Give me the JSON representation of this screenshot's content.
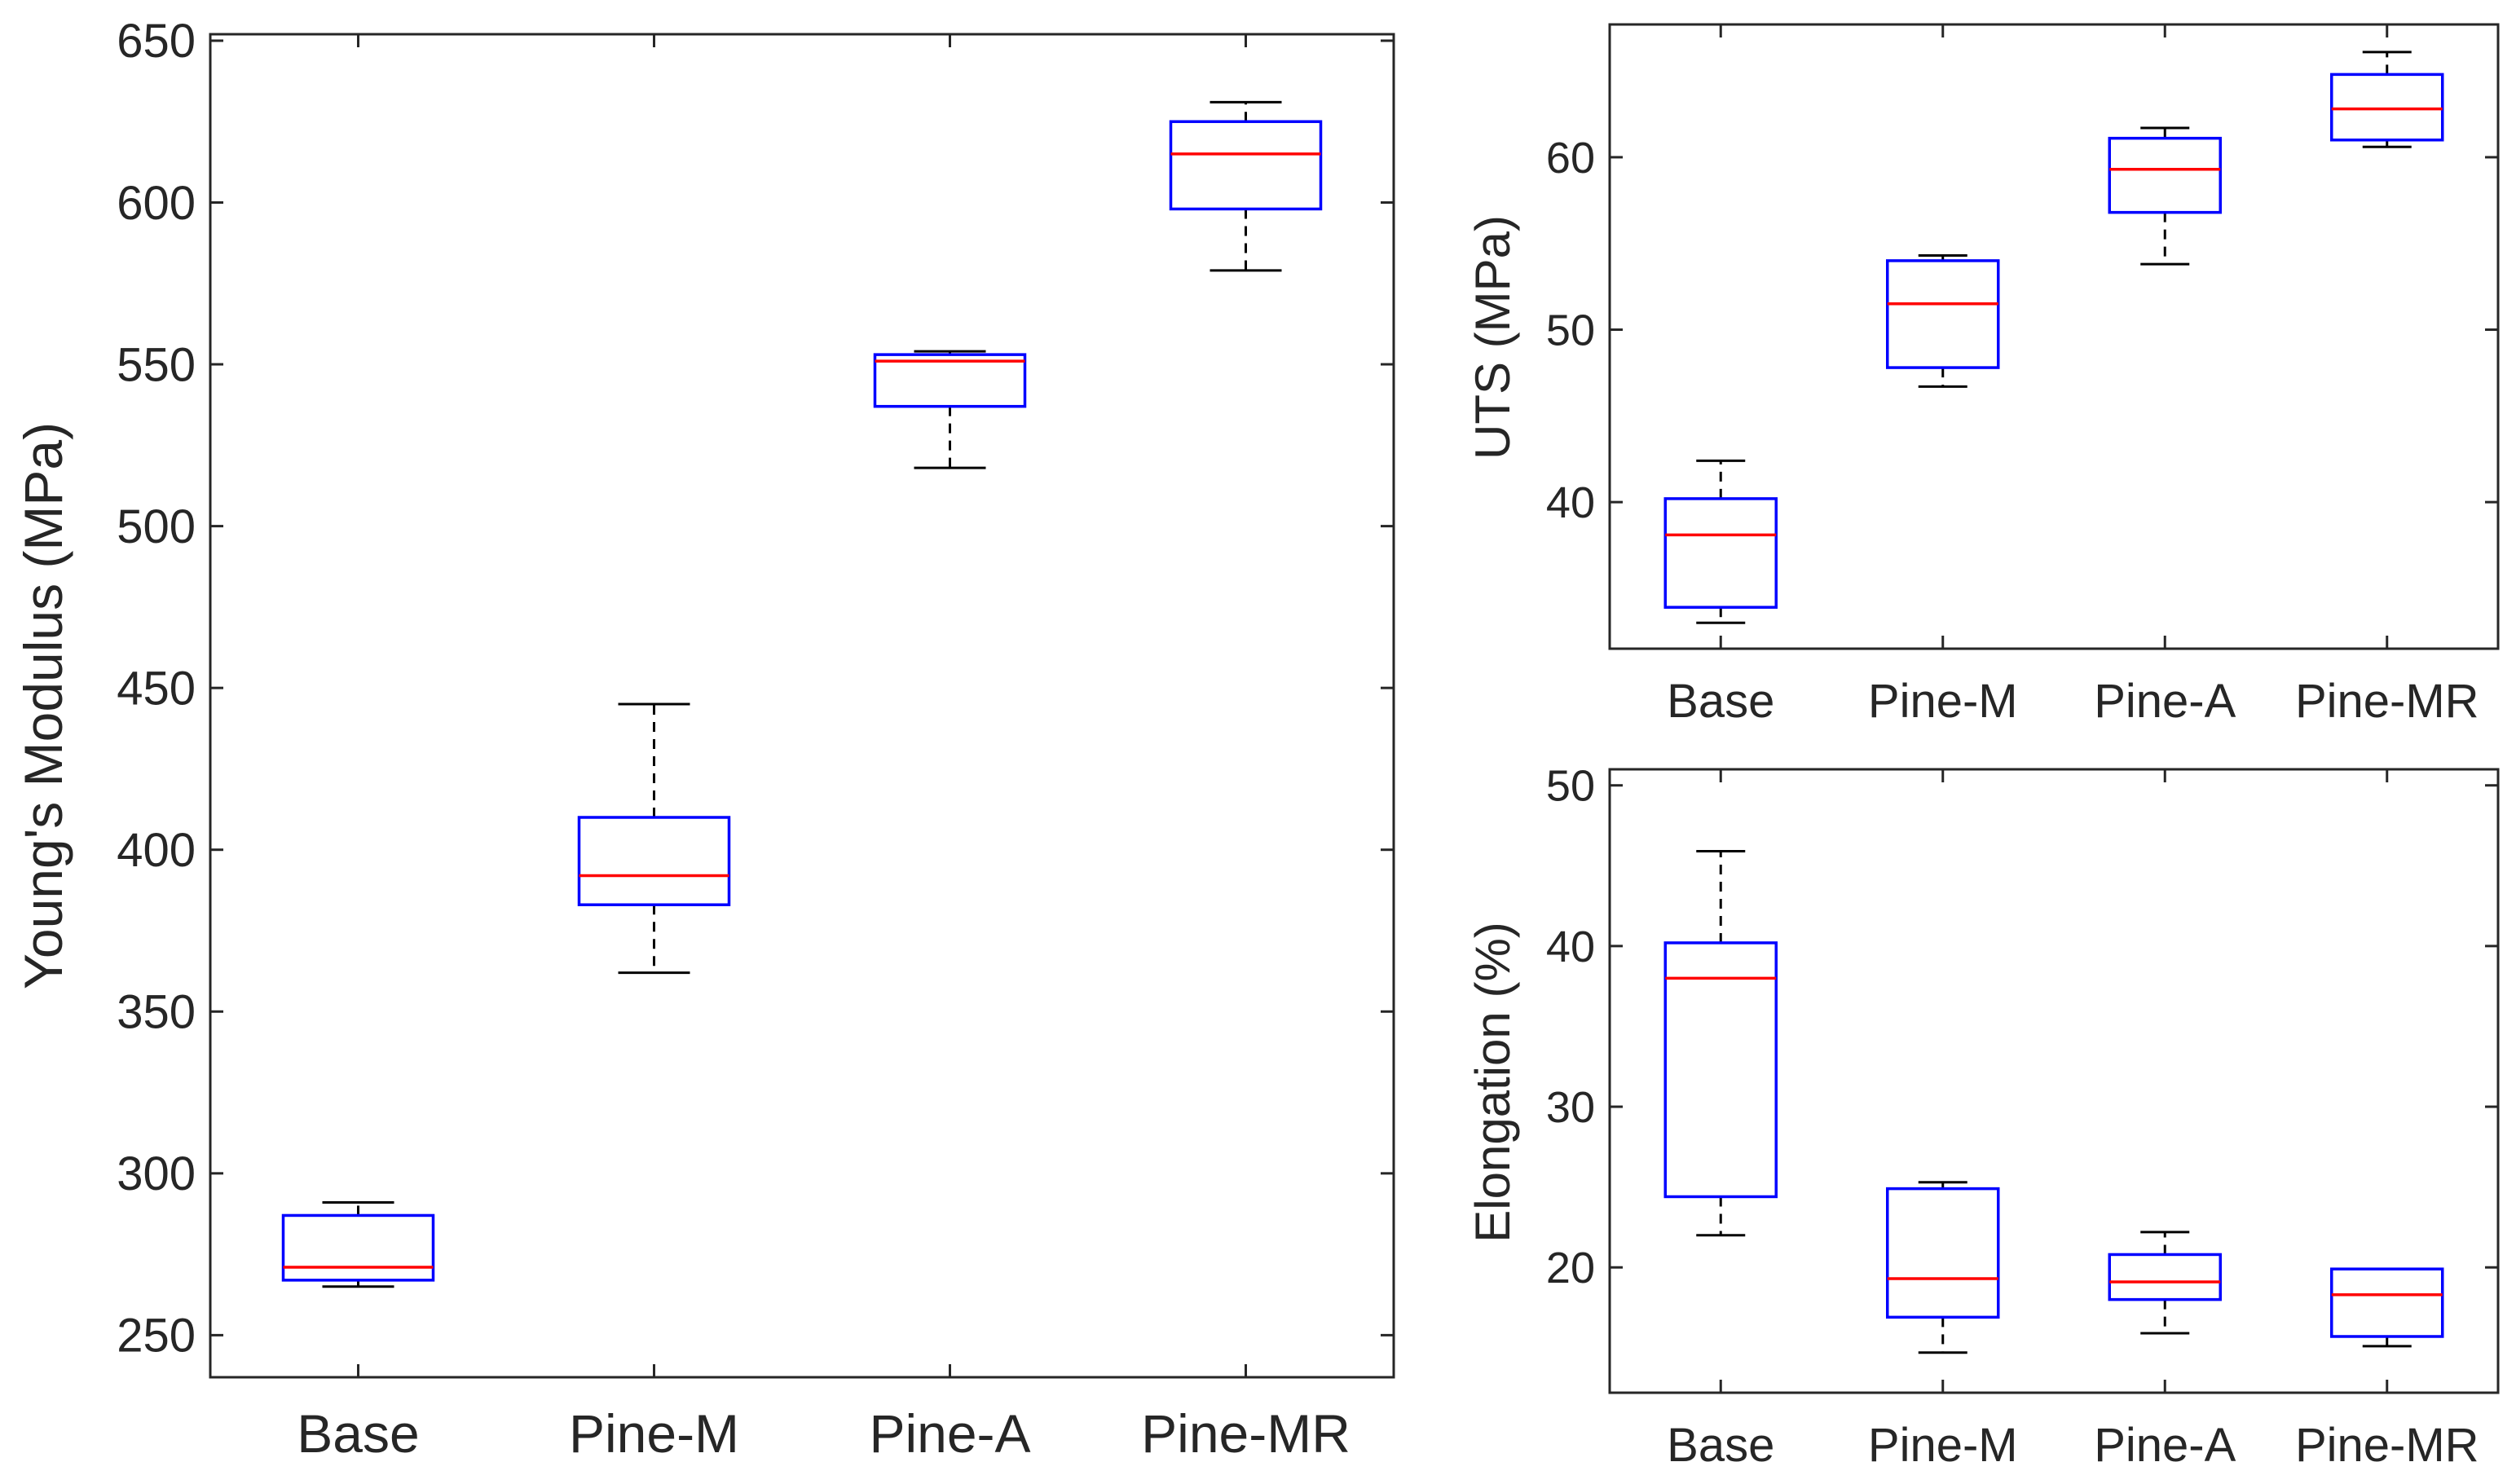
{
  "figure": {
    "description_free": true
  },
  "chart_data": [
    {
      "id": "modulus",
      "type": "boxplot",
      "title": "",
      "xlabel": "",
      "ylabel": "Young's Modulus (MPa)",
      "categories": [
        "Base",
        "Pine-M",
        "Pine-A",
        "Pine-MR"
      ],
      "ylim": [
        237,
        652
      ],
      "yticks": [
        250,
        300,
        350,
        400,
        450,
        500,
        550,
        600,
        650
      ],
      "boxes": [
        {
          "category": "Base",
          "whisker_low": 265,
          "q1": 267,
          "median": 271,
          "q3": 287,
          "whisker_high": 291
        },
        {
          "category": "Pine-M",
          "whisker_low": 362,
          "q1": 383,
          "median": 392,
          "q3": 410,
          "whisker_high": 445
        },
        {
          "category": "Pine-A",
          "whisker_low": 518,
          "q1": 537,
          "median": 551,
          "q3": 553,
          "whisker_high": 554
        },
        {
          "category": "Pine-MR",
          "whisker_low": 579,
          "q1": 598,
          "median": 615,
          "q3": 625,
          "whisker_high": 631
        }
      ],
      "colors": {
        "box": "#0000ff",
        "median": "#ff0000",
        "whisker": "#000000"
      }
    },
    {
      "id": "uts",
      "type": "boxplot",
      "title": "",
      "xlabel": "",
      "ylabel": "UTS (MPa)",
      "categories": [
        "Base",
        "Pine-M",
        "Pine-A",
        "Pine-MR"
      ],
      "ylim": [
        31.5,
        67.7
      ],
      "yticks": [
        40,
        50,
        60
      ],
      "boxes": [
        {
          "category": "Base",
          "whisker_low": 33.0,
          "q1": 33.9,
          "median": 38.1,
          "q3": 40.2,
          "whisker_high": 42.4
        },
        {
          "category": "Pine-M",
          "whisker_low": 46.7,
          "q1": 47.8,
          "median": 51.5,
          "q3": 54.0,
          "whisker_high": 54.3
        },
        {
          "category": "Pine-A",
          "whisker_low": 53.8,
          "q1": 56.8,
          "median": 59.3,
          "q3": 61.1,
          "whisker_high": 61.7
        },
        {
          "category": "Pine-MR",
          "whisker_low": 60.6,
          "q1": 61.0,
          "median": 62.8,
          "q3": 64.8,
          "whisker_high": 66.1
        }
      ],
      "colors": {
        "box": "#0000ff",
        "median": "#ff0000",
        "whisker": "#000000"
      }
    },
    {
      "id": "elongation",
      "type": "boxplot",
      "title": "",
      "xlabel": "",
      "ylabel": "Elongation (%)",
      "categories": [
        "Base",
        "Pine-M",
        "Pine-A",
        "Pine-MR"
      ],
      "ylim": [
        12.2,
        51
      ],
      "yticks": [
        20,
        30,
        40,
        50
      ],
      "boxes": [
        {
          "category": "Base",
          "whisker_low": 22.0,
          "q1": 24.4,
          "median": 38.0,
          "q3": 40.2,
          "whisker_high": 45.9
        },
        {
          "category": "Pine-M",
          "whisker_low": 14.7,
          "q1": 16.9,
          "median": 19.3,
          "q3": 24.9,
          "whisker_high": 25.3
        },
        {
          "category": "Pine-A",
          "whisker_low": 15.9,
          "q1": 18.0,
          "median": 19.1,
          "q3": 20.8,
          "whisker_high": 22.2
        },
        {
          "category": "Pine-MR",
          "whisker_low": 15.1,
          "q1": 15.7,
          "median": 18.3,
          "q3": 19.9,
          "whisker_high": 19.9
        }
      ],
      "colors": {
        "box": "#0000ff",
        "median": "#ff0000",
        "whisker": "#000000"
      }
    }
  ]
}
